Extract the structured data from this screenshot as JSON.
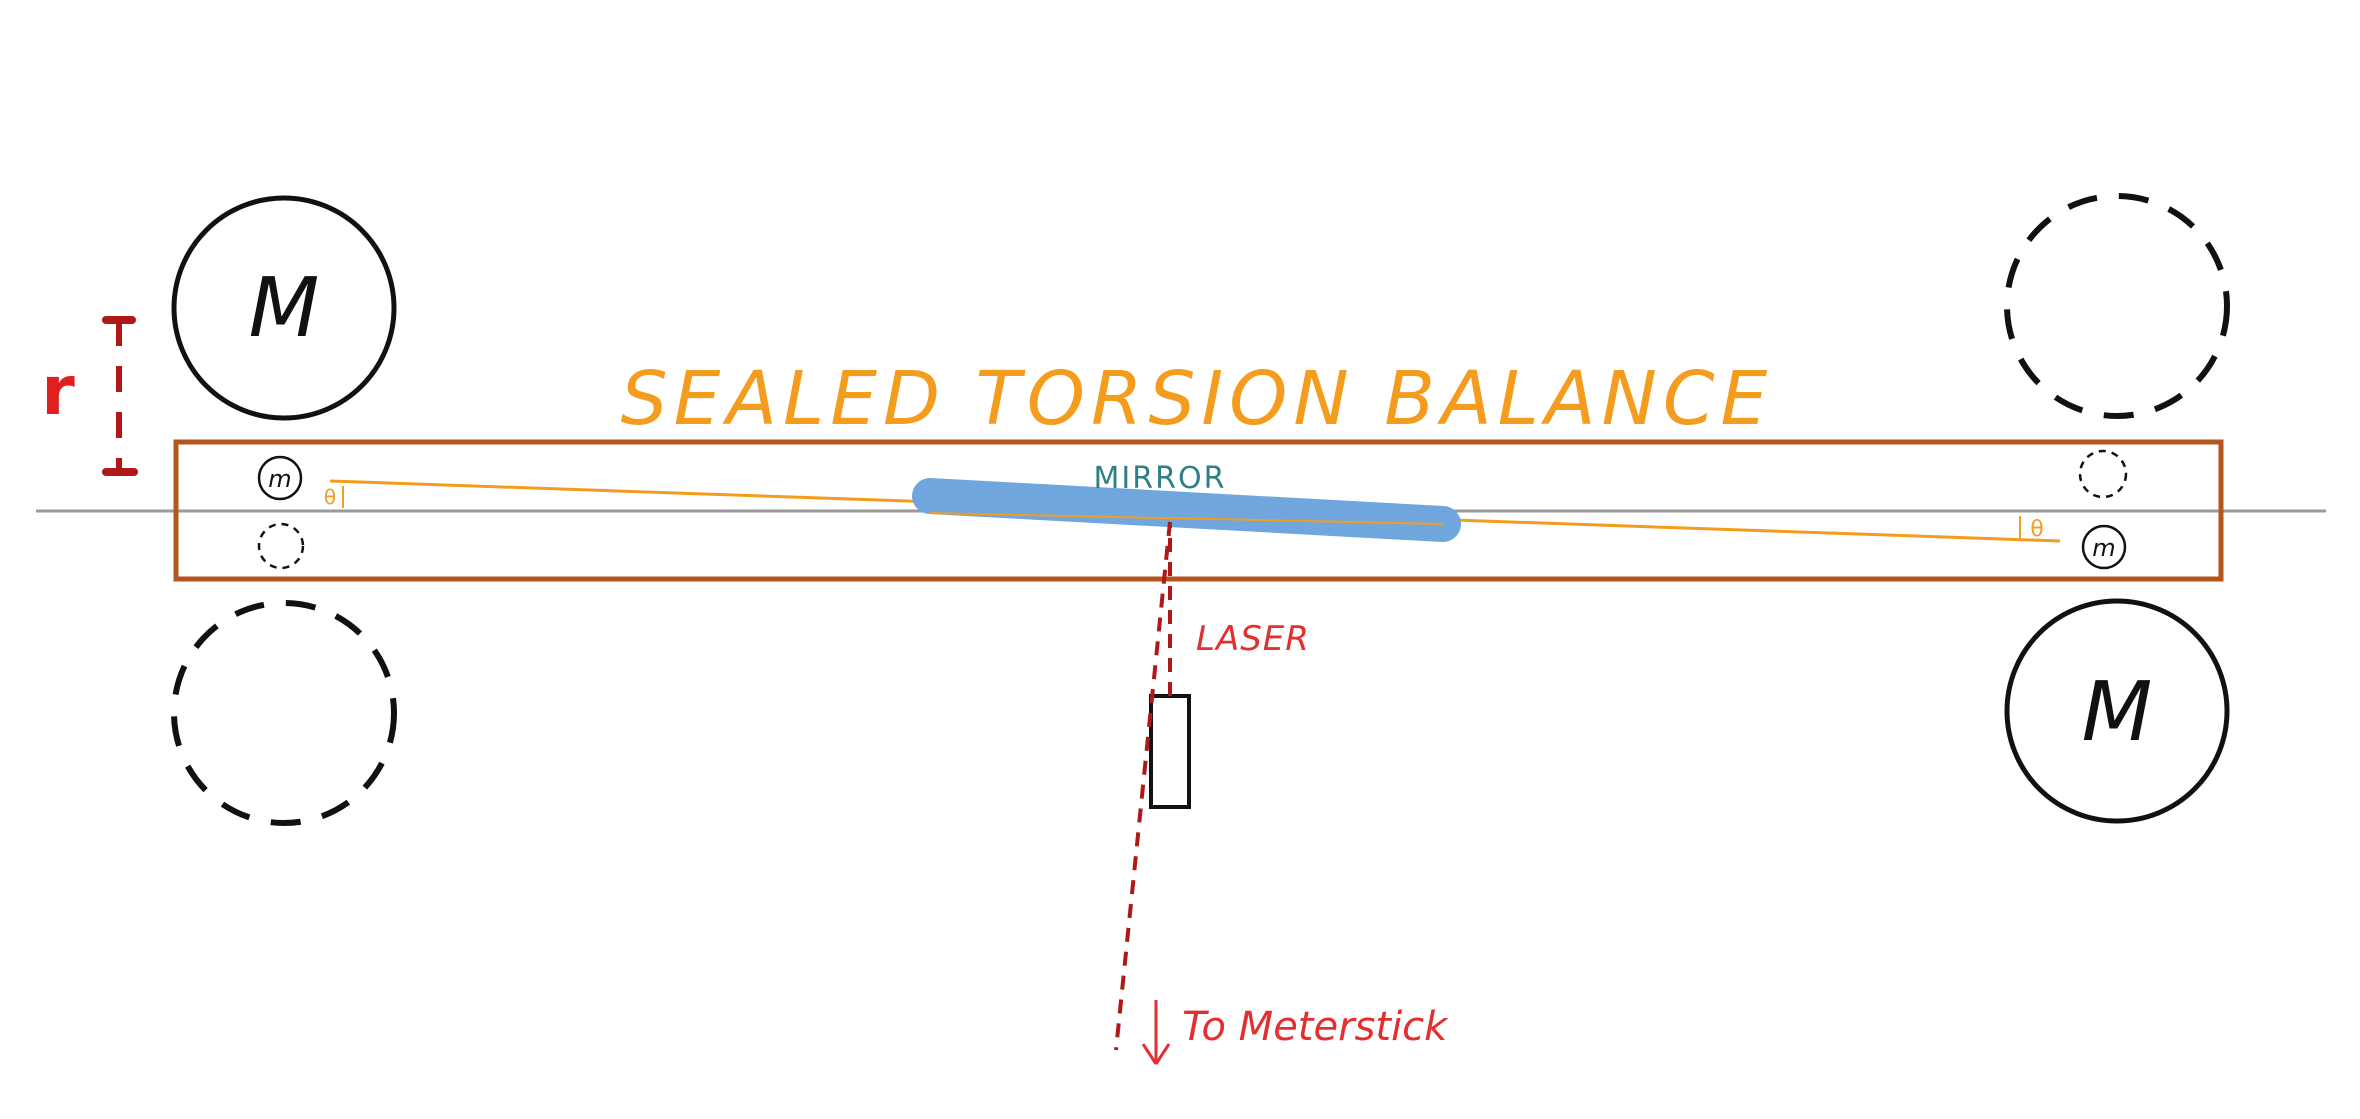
{
  "diagram": {
    "title": "SEALED TORSION BALANCE",
    "mirror_label": "MIRROR",
    "laser_label": "LASER",
    "meterstick_label": "To Meterstick",
    "radius_label": "r",
    "large_mass_label": "M",
    "small_mass_label": "m",
    "angle_label": "θ",
    "colors": {
      "title": "#f39c1e",
      "enclosure": "#b5541c",
      "mirror": "#6fa6de",
      "mirror_label": "#2f7f86",
      "laser": "#b01818",
      "meterstick_label": "#e23030",
      "radius_label": "#e02020",
      "radius_marker": "#b01818",
      "beam": "#f39c1e",
      "axis": "#9a9a9a",
      "ink": "#111111"
    }
  }
}
